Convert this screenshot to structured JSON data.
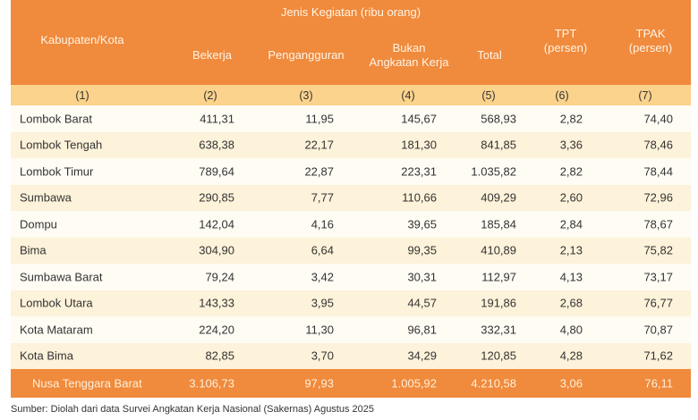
{
  "header": {
    "group": "Jenis Kegiatan (ribu orang)",
    "region": "Kabupaten/Kota",
    "bekerja": "Bekerja",
    "pengangguran": "Pengangguran",
    "bak_line1": "Bukan",
    "bak_line2": "Angkatan Kerja",
    "total": "Total",
    "tpt_line1": "TPT",
    "tpt_line2": "(persen)",
    "tpak_line1": "TPAK",
    "tpak_line2": "(persen)"
  },
  "index": [
    "(1)",
    "(2)",
    "(3)",
    "(4)",
    "(5)",
    "(6)",
    "(7)"
  ],
  "rows": [
    [
      "Lombok Barat",
      "411,31",
      "11,95",
      "145,67",
      "568,93",
      "2,82",
      "74,40"
    ],
    [
      "Lombok Tengah",
      "638,38",
      "22,17",
      "181,30",
      "841,85",
      "3,36",
      "78,46"
    ],
    [
      "Lombok Timur",
      "789,64",
      "22,87",
      "223,31",
      "1.035,82",
      "2,82",
      "78,44"
    ],
    [
      "Sumbawa",
      "290,85",
      "7,77",
      "110,66",
      "409,29",
      "2,60",
      "72,96"
    ],
    [
      "Dompu",
      "142,04",
      "4,16",
      "39,65",
      "185,84",
      "2,84",
      "78,67"
    ],
    [
      "Bima",
      "304,90",
      "6,64",
      "99,35",
      "410,89",
      "2,13",
      "75,82"
    ],
    [
      "Sumbawa Barat",
      "79,24",
      "3,42",
      "30,31",
      "112,97",
      "4,13",
      "73,17"
    ],
    [
      "Lombok Utara",
      "143,33",
      "3,95",
      "44,57",
      "191,86",
      "2,68",
      "76,77"
    ],
    [
      "Kota Mataram",
      "224,20",
      "11,30",
      "96,81",
      "332,31",
      "4,80",
      "70,87"
    ],
    [
      "Kota Bima",
      "82,85",
      "3,70",
      "34,29",
      "120,85",
      "4,28",
      "71,62"
    ]
  ],
  "total": [
    "Nusa Tenggara Barat",
    "3.106,73",
    "97,93",
    "1.005,92",
    "4.210,58",
    "3,06",
    "76,11"
  ],
  "source": "Sumber: Diolah dari data Survei Angkatan Kerja Nasional (Sakernas) Agustus 2025",
  "colors": {
    "header": "#F08A3C",
    "index_row": "#FCD38C",
    "row_light": "#FFFCF4",
    "row_alt": "#FDF2DA"
  }
}
